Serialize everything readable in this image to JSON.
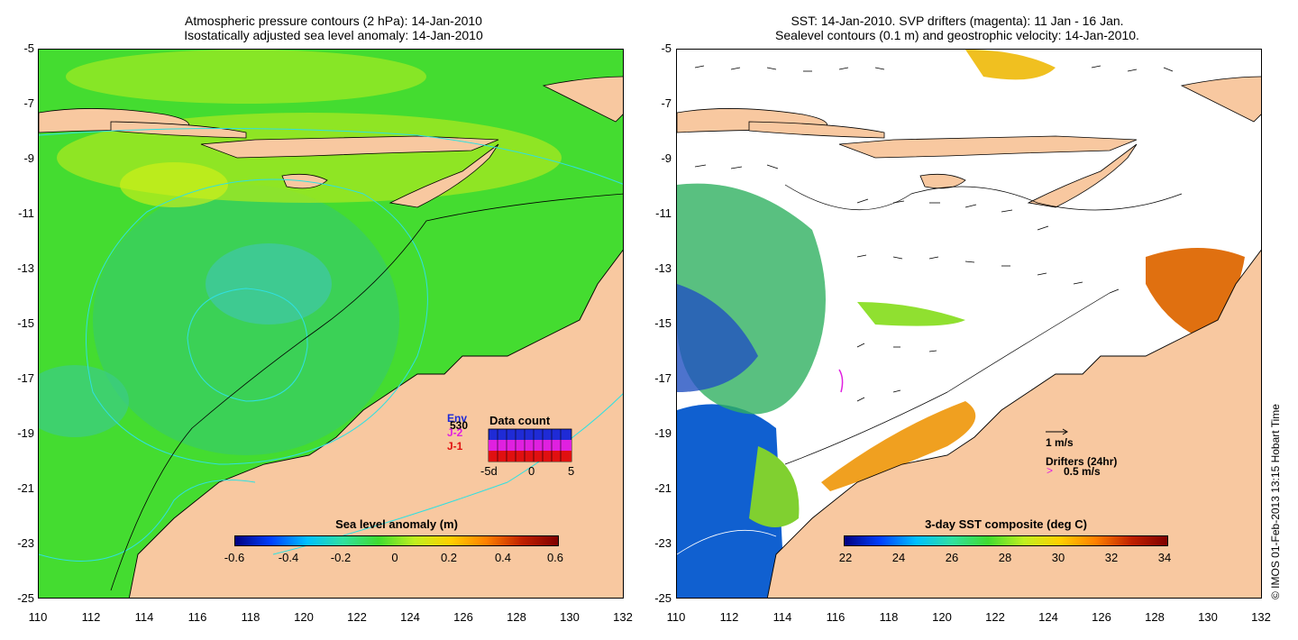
{
  "left_panel": {
    "title_line1": "Atmospheric pressure contours (2 hPa): 14-Jan-2010",
    "title_line2": "Isostatically adjusted sea level anomaly: 14-Jan-2010",
    "colorbar": {
      "title": "Sea level anomaly (m)",
      "ticks": [
        "-0.6",
        "-0.4",
        "-0.2",
        "0",
        "0.2",
        "0.4",
        "0.6"
      ]
    },
    "data_count": {
      "title": "Data count",
      "series_labels": [
        "Env",
        "J-2",
        "J-1"
      ],
      "series_colors": [
        "#1f2bd6",
        "#e020e0",
        "#e01010"
      ],
      "overlay_label": "530",
      "axis_labels": [
        "-5d",
        "0",
        "5"
      ]
    }
  },
  "right_panel": {
    "title_line1": "SST: 14-Jan-2010. SVP drifters (magenta): 11 Jan - 16 Jan.",
    "title_line2": "Sealevel contours (0.1 m) and geostrophic velocity: 14-Jan-2010.",
    "colorbar": {
      "title": "3-day SST composite (deg C)",
      "ticks": [
        "22",
        "24",
        "26",
        "28",
        "30",
        "32",
        "34"
      ]
    },
    "velocity_scale_label": "1 m/s",
    "drifters_label": "Drifters (24hr)",
    "drifter_speed_label": "0.5 m/s"
  },
  "axes": {
    "lat_labels": [
      "-5",
      "-7",
      "-9",
      "-11",
      "-13",
      "-15",
      "-17",
      "-19",
      "-21",
      "-23",
      "-25"
    ],
    "lon_labels": [
      "110",
      "112",
      "114",
      "116",
      "118",
      "120",
      "122",
      "124",
      "126",
      "128",
      "130",
      "132"
    ]
  },
  "credit": "© IMOS 01-Feb-2013 13:15 Hobart Time",
  "colors": {
    "land": "#f8c8a0",
    "ocean_green": "#3cd83c",
    "contour_cyan": "#30e0e0",
    "drifter_magenta": "#e020e0"
  }
}
